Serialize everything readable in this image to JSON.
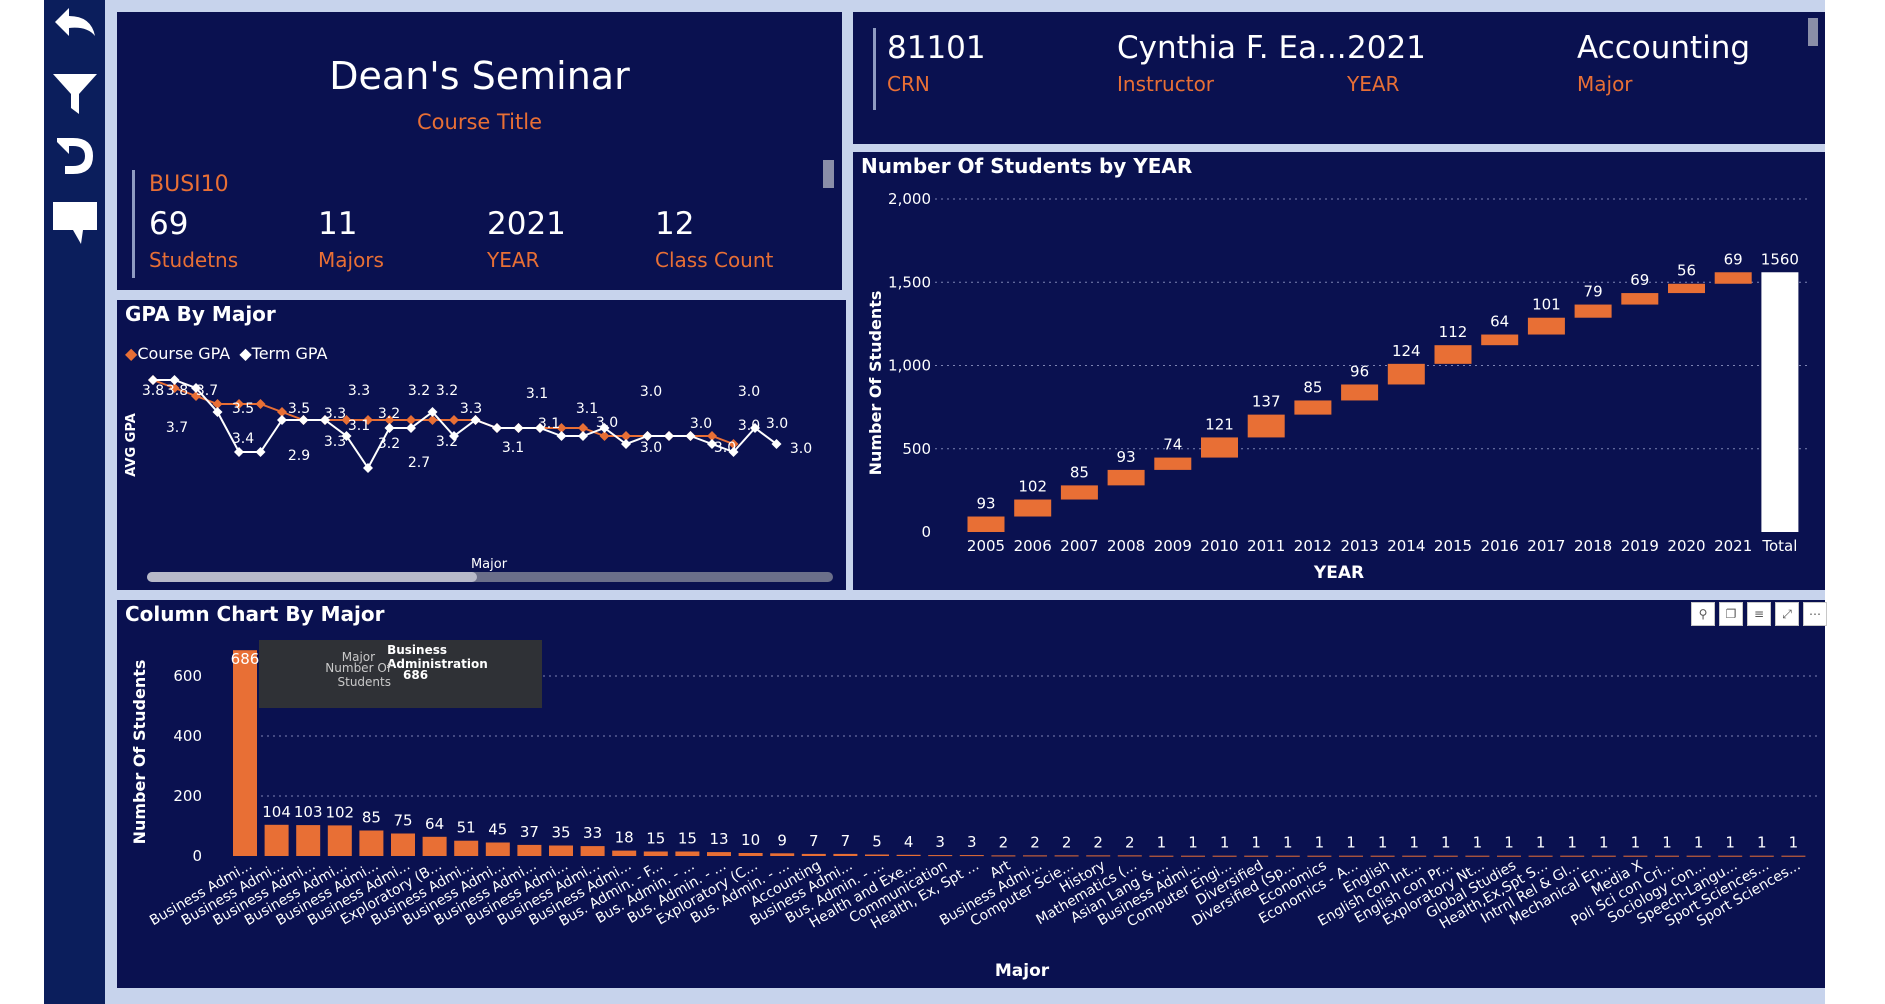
{
  "colors": {
    "navy": "#0a1150",
    "orange": "#e86f35",
    "white": "#ffffff",
    "canvas": "#c7d3ec",
    "sidebar": "#0b1e5c"
  },
  "sidebar": {
    "icons": [
      "back-arrow-icon",
      "filter-icon",
      "reset-icon",
      "comment-icon"
    ]
  },
  "course_card": {
    "title": "Dean's Seminar",
    "title_label": "Course Title",
    "code": "BUSI10",
    "kpis": [
      {
        "value": "69",
        "label": "Studetns"
      },
      {
        "value": "11",
        "label": "Majors"
      },
      {
        "value": "2021",
        "label": "YEAR"
      },
      {
        "value": "12",
        "label": "Class Count"
      }
    ]
  },
  "header_card": {
    "kpis": [
      {
        "value": "81101",
        "label": "CRN"
      },
      {
        "value": "Cynthia F. Ea...",
        "label": "Instructor"
      },
      {
        "value": "2021",
        "label": "YEAR"
      },
      {
        "value": "Accounting",
        "label": "Major"
      }
    ]
  },
  "tooltip": {
    "rows": [
      {
        "key": "Major",
        "value": "Business Administration"
      },
      {
        "key": "Number Of Students",
        "value": "686"
      }
    ]
  },
  "chart_data": [
    {
      "type": "line",
      "title": "GPA By Major",
      "xlabel": "Major",
      "ylabel": "AVG GPA",
      "legend_position": "top-left",
      "series": [
        {
          "name": "Course GPA",
          "color": "#e86f35",
          "values": [
            3.8,
            3.7,
            3.6,
            3.5,
            3.5,
            3.5,
            3.4,
            3.3,
            3.3,
            3.3,
            3.3,
            3.3,
            3.3,
            3.3,
            3.3,
            3.3,
            3.2,
            3.2,
            3.2,
            3.2,
            3.2,
            3.1,
            3.1,
            3.1,
            3.1,
            3.1,
            3.1,
            3.0
          ]
        },
        {
          "name": "Term GPA",
          "color": "#ffffff",
          "values": [
            3.8,
            3.8,
            3.7,
            3.4,
            2.9,
            2.9,
            3.3,
            3.3,
            3.3,
            3.1,
            2.7,
            3.2,
            3.2,
            3.4,
            3.1,
            3.3,
            3.2,
            3.2,
            3.2,
            3.1,
            3.1,
            3.2,
            3.0,
            3.1,
            3.1,
            3.1,
            3.0,
            2.9,
            3.2,
            3.0
          ]
        }
      ],
      "point_labels": [
        {
          "text": "3.8"
        },
        {
          "text": "3.8"
        },
        {
          "text": "3.7"
        },
        {
          "text": "3.7"
        },
        {
          "text": "3.5"
        },
        {
          "text": "3.4"
        },
        {
          "text": "3.5"
        },
        {
          "text": "2.9"
        },
        {
          "text": "3.3"
        },
        {
          "text": "3.3"
        },
        {
          "text": "3.3"
        },
        {
          "text": "3.1"
        },
        {
          "text": "3.2"
        },
        {
          "text": "3.2"
        },
        {
          "text": "3.2"
        },
        {
          "text": "2.7"
        },
        {
          "text": "3.2"
        },
        {
          "text": "3.2"
        },
        {
          "text": "3.3"
        },
        {
          "text": "3.1"
        },
        {
          "text": "3.1"
        },
        {
          "text": "3.1"
        },
        {
          "text": "3.0"
        },
        {
          "text": "3.1"
        },
        {
          "text": "3.0"
        },
        {
          "text": "3.0"
        },
        {
          "text": "3.0"
        },
        {
          "text": "3.0"
        },
        {
          "text": "3.0"
        },
        {
          "text": "3.0"
        },
        {
          "text": "3.0"
        },
        {
          "text": "3.0"
        }
      ]
    },
    {
      "type": "bar",
      "subtype": "waterfall",
      "title": "Number Of Students by YEAR",
      "xlabel": "YEAR",
      "ylabel": "Number Of Students",
      "ylim": [
        0,
        2000
      ],
      "yticks": [
        "0",
        "500",
        "1,000",
        "1,500",
        "2,000"
      ],
      "grid": true,
      "categories": [
        "2005",
        "2006",
        "2007",
        "2008",
        "2009",
        "2010",
        "2011",
        "2012",
        "2013",
        "2014",
        "2015",
        "2016",
        "2017",
        "2018",
        "2019",
        "2020",
        "2021",
        "Total"
      ],
      "values": [
        93,
        102,
        85,
        93,
        74,
        121,
        137,
        85,
        96,
        124,
        112,
        64,
        101,
        79,
        69,
        56,
        69,
        1560
      ]
    },
    {
      "type": "bar",
      "title": "Column Chart By Major",
      "xlabel": "Major",
      "ylabel": "Number Of Students",
      "ylim": [
        0,
        700
      ],
      "yticks": [
        "0",
        "200",
        "400",
        "600"
      ],
      "grid": true,
      "categories": [
        "Business Admi...",
        "Business Admi...",
        "Business Admi...",
        "Business Admi...",
        "Business Admi...",
        "Business Admi...",
        "Exploratory (B...",
        "Business Admi...",
        "Business Admi...",
        "Business Admi...",
        "Business Admi...",
        "Business Admi...",
        "Business Admi...",
        "Bus. Admin. - F...",
        "Bus. Admin. - ...",
        "Bus. Admin. - ...",
        "Exploratory (C...",
        "Bus. Admin. - ...",
        "Accounting",
        "Business Admi...",
        "Bus. Admin. - ...",
        "Health and Exe...",
        "Communication",
        "Health, Ex, Spt ...",
        "Art",
        "Business Admi...",
        "Computer Scie...",
        "History",
        "Mathematics (...",
        "Asian Lang & ...",
        "Business Admi...",
        "Computer Engi...",
        "Diversified",
        "Diversified (Sp...",
        "Economics",
        "Economics - A...",
        "English",
        "English con Int...",
        "English con Pr...",
        "Exploratory Nt...",
        "Global Studies",
        "Health,Ex,Spt S...",
        "Intrnl Rel & Gl...",
        "Mechanical En...",
        "Media X",
        "Poli Sci con Cri...",
        "Sociology con...",
        "Speech-Langu...",
        "Sport Sciences...",
        "Sport Sciences..."
      ],
      "values": [
        686,
        104,
        103,
        102,
        85,
        75,
        64,
        51,
        45,
        37,
        35,
        33,
        18,
        15,
        15,
        13,
        10,
        9,
        7,
        7,
        5,
        4,
        3,
        3,
        2,
        2,
        2,
        2,
        2,
        1,
        1,
        1,
        1,
        1,
        1,
        1,
        1,
        1,
        1,
        1,
        1,
        1,
        1,
        1,
        1,
        1,
        1,
        1,
        1,
        1
      ]
    }
  ]
}
